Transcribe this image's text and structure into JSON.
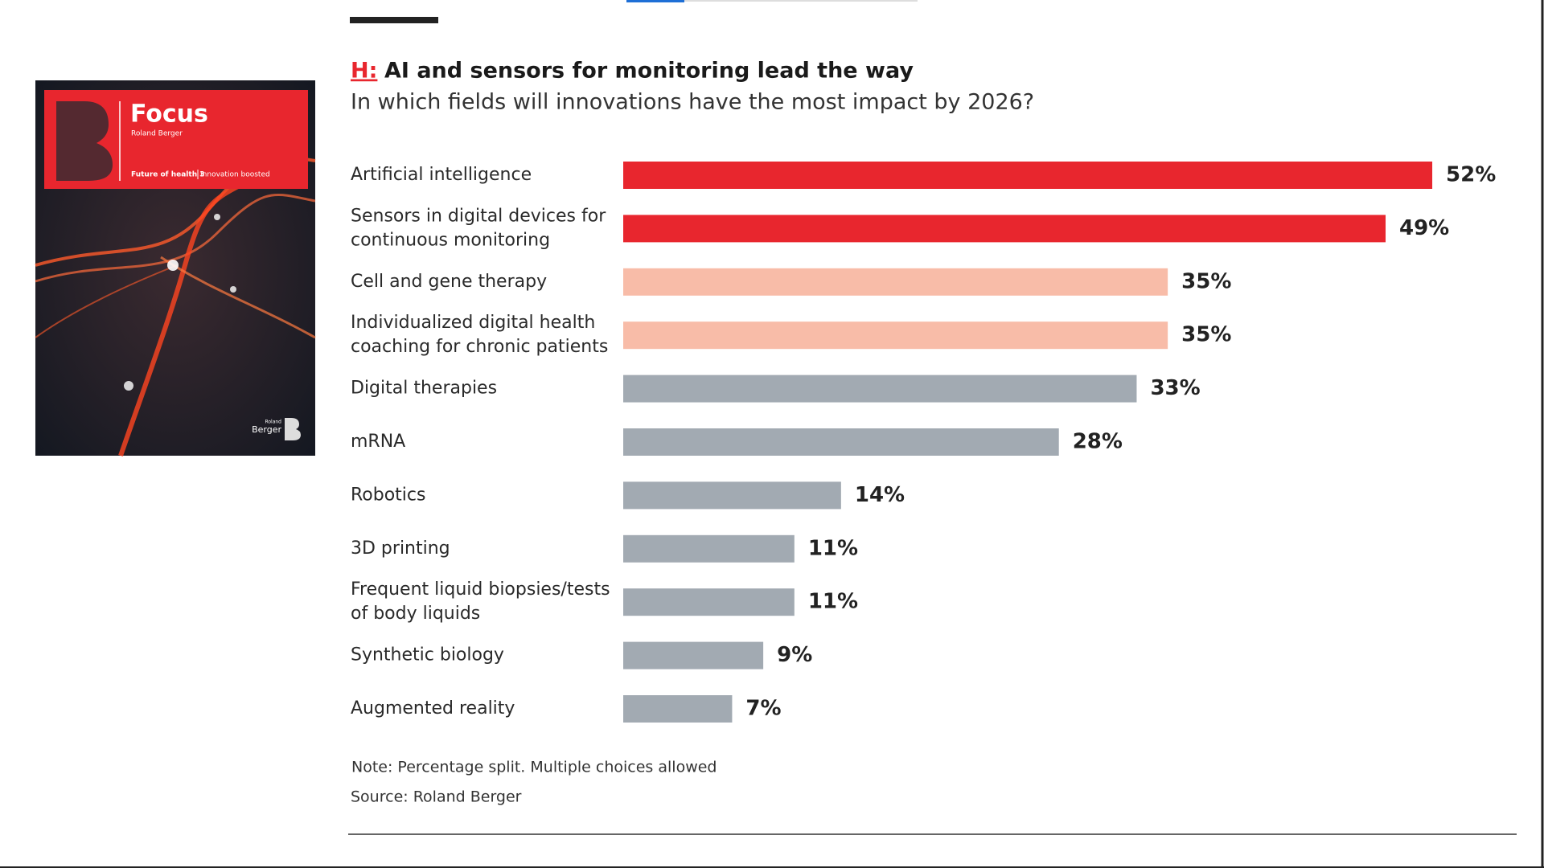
{
  "cover": {
    "title": "Focus",
    "brand": "Roland Berger",
    "series_name": "Future of health 3",
    "issue": "Innovation boosted",
    "logo_top": "Roland",
    "logo_bottom": "Berger"
  },
  "chart_data": {
    "type": "bar",
    "orientation": "horizontal",
    "title_prefix": "H:",
    "title": "AI and sensors for monitoring lead the way",
    "subtitle": "In which fields will innovations have the most impact by 2026?",
    "categories": [
      "Artificial intelligence",
      [
        "Sensors in digital devices for",
        "continuous monitoring"
      ],
      "Cell and gene therapy",
      [
        "Individualized digital health",
        "coaching for chronic patients"
      ],
      "Digital therapies",
      "mRNA",
      "Robotics",
      "3D printing",
      [
        "Frequent liquid biopsies/tests",
        "of body liquids"
      ],
      "Synthetic biology",
      "Augmented reality"
    ],
    "values": [
      52,
      49,
      35,
      35,
      33,
      28,
      14,
      11,
      11,
      9,
      7
    ],
    "value_labels": [
      "52%",
      "49%",
      "35%",
      "35%",
      "33%",
      "28%",
      "14%",
      "11%",
      "11%",
      "9%",
      "7%"
    ],
    "colors": [
      "#e8262e",
      "#e8262e",
      "#f8bca8",
      "#f8bca8",
      "#a2aab2",
      "#a2aab2",
      "#a2aab2",
      "#a2aab2",
      "#a2aab2",
      "#a2aab2",
      "#a2aab2"
    ],
    "note": "Note: Percentage split. Multiple choices allowed",
    "source": "Source: Roland Berger"
  }
}
